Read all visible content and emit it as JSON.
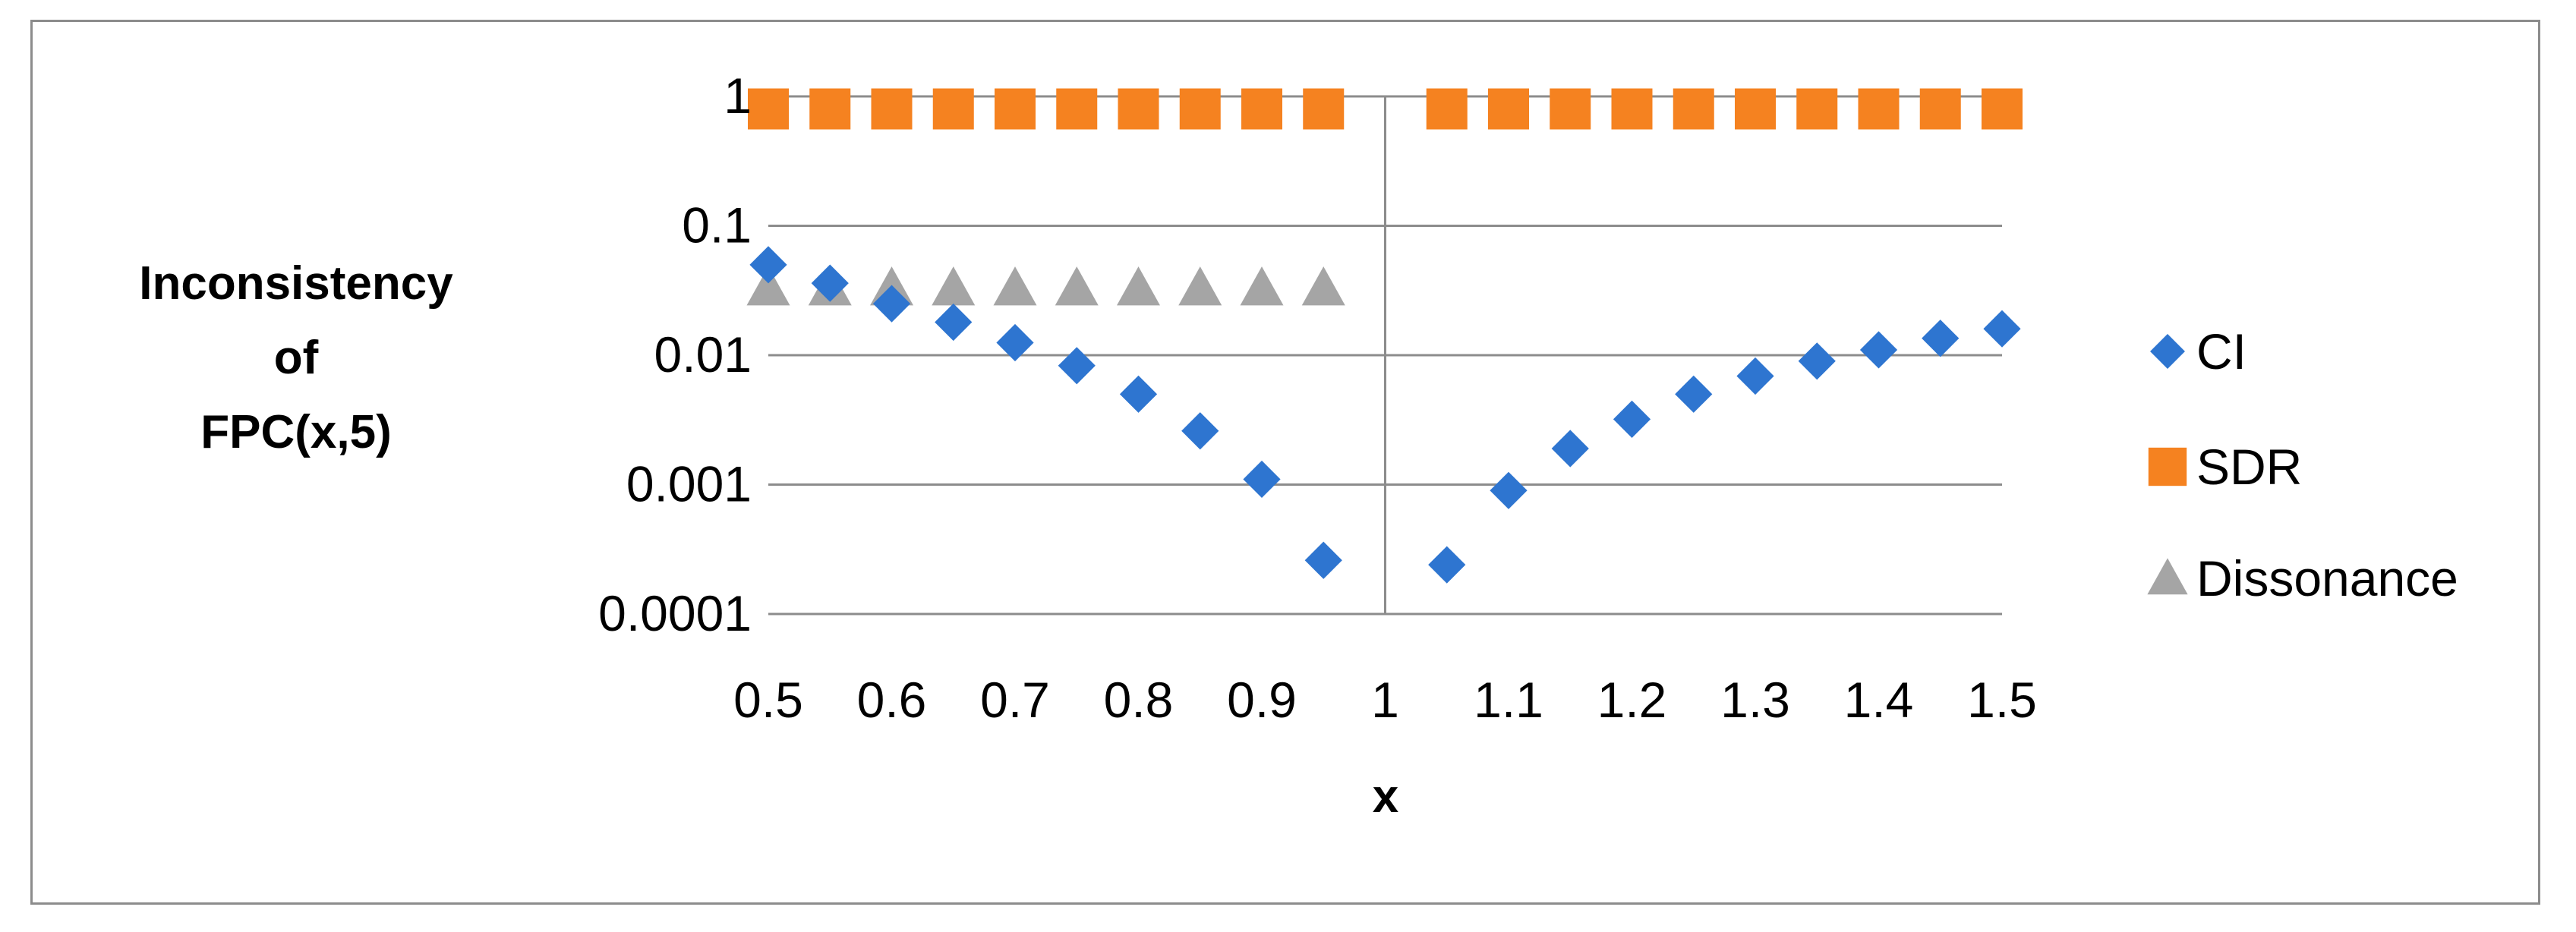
{
  "chart_data": {
    "type": "scatter",
    "xlabel": "x",
    "ylabel_lines": [
      "Inconsistency",
      "of",
      "FPC(x,5)"
    ],
    "y_scale": "log",
    "ylim": [
      0.0001,
      1
    ],
    "xlim": [
      0.5,
      1.5
    ],
    "x_ticks": [
      0.5,
      0.6,
      0.7,
      0.8,
      0.9,
      1,
      1.1,
      1.2,
      1.3,
      1.4,
      1.5
    ],
    "x_tick_labels": [
      "0.5",
      "0.6",
      "0.7",
      "0.8",
      "0.9",
      "1",
      "1.1",
      "1.2",
      "1.3",
      "1.4",
      "1.5"
    ],
    "y_ticks": [
      0.0001,
      0.001,
      0.01,
      0.1,
      1
    ],
    "y_tick_labels": [
      "0.0001",
      "0.001",
      "0.01",
      "0.1",
      "1"
    ],
    "grid": "horizontal",
    "legend_position": "right",
    "series": [
      {
        "name": "CI",
        "marker": "diamond",
        "color": "#2E75D0",
        "points": [
          [
            0.5,
            0.05
          ],
          [
            0.55,
            0.036
          ],
          [
            0.6,
            0.025
          ],
          [
            0.65,
            0.018
          ],
          [
            0.7,
            0.0125
          ],
          [
            0.75,
            0.0083
          ],
          [
            0.8,
            0.005
          ],
          [
            0.85,
            0.0026
          ],
          [
            0.9,
            0.0011
          ],
          [
            0.95,
            0.00026
          ],
          [
            1.05,
            0.00024
          ],
          [
            1.1,
            0.0009
          ],
          [
            1.15,
            0.0019
          ],
          [
            1.2,
            0.0032
          ],
          [
            1.25,
            0.005
          ],
          [
            1.3,
            0.0069
          ],
          [
            1.35,
            0.009
          ],
          [
            1.4,
            0.011
          ],
          [
            1.45,
            0.0135
          ],
          [
            1.5,
            0.016
          ]
        ]
      },
      {
        "name": "SDR",
        "marker": "square",
        "color": "#F58220",
        "points": [
          [
            0.5,
            0.8
          ],
          [
            0.55,
            0.8
          ],
          [
            0.6,
            0.8
          ],
          [
            0.65,
            0.8
          ],
          [
            0.7,
            0.8
          ],
          [
            0.75,
            0.8
          ],
          [
            0.8,
            0.8
          ],
          [
            0.85,
            0.8
          ],
          [
            0.9,
            0.8
          ],
          [
            0.95,
            0.8
          ],
          [
            1.05,
            0.8
          ],
          [
            1.1,
            0.8
          ],
          [
            1.15,
            0.8
          ],
          [
            1.2,
            0.8
          ],
          [
            1.25,
            0.8
          ],
          [
            1.3,
            0.8
          ],
          [
            1.35,
            0.8
          ],
          [
            1.4,
            0.8
          ],
          [
            1.45,
            0.8
          ],
          [
            1.5,
            0.8
          ]
        ]
      },
      {
        "name": "Dissonance",
        "marker": "triangle",
        "color": "#A5A5A5",
        "points": [
          [
            0.5,
            0.033
          ],
          [
            0.55,
            0.033
          ],
          [
            0.6,
            0.033
          ],
          [
            0.65,
            0.033
          ],
          [
            0.7,
            0.033
          ],
          [
            0.75,
            0.033
          ],
          [
            0.8,
            0.033
          ],
          [
            0.85,
            0.033
          ],
          [
            0.9,
            0.033
          ],
          [
            0.95,
            0.033
          ]
        ]
      }
    ]
  }
}
